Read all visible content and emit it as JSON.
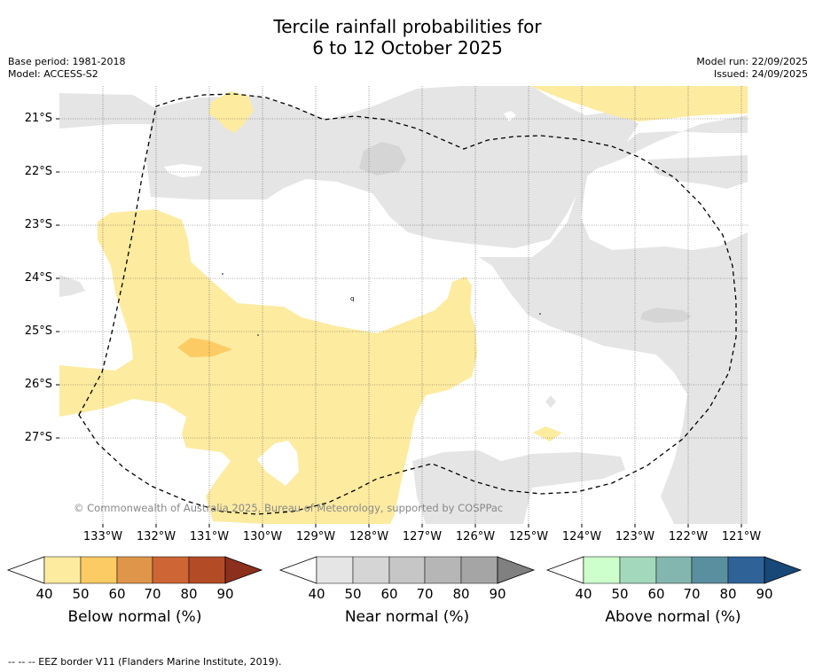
{
  "title_line1": "Tercile rainfall probabilities for",
  "title_line2": "6 to 12 October 2025",
  "base_period": "Base period: 1981-2018",
  "model": "Model: ACCESS-S2",
  "model_run": "Model run: 22/09/2025",
  "issued": "Issued: 24/09/2025",
  "latitude_labels": [
    "21°S",
    "22°S",
    "23°S",
    "24°S",
    "25°S",
    "26°S",
    "27°S"
  ],
  "longitude_labels": [
    "133°W",
    "132°W",
    "131°W",
    "130°W",
    "129°W",
    "128°W",
    "127°W",
    "126°W",
    "125°W",
    "124°W",
    "123°W",
    "122°W",
    "121°W"
  ],
  "copyright": "© Commonwealth of Australia 2025, Bureau of Meteorology, supported by COSPPac",
  "colorbars": [
    {
      "title": "Below normal (%)",
      "ticks": [
        "40",
        "50",
        "60",
        "70",
        "80",
        "90"
      ],
      "colors": [
        "#ffffff",
        "#fdeba0",
        "#fdcb63",
        "#e0964a",
        "#cd6634",
        "#b34b27",
        "#8c2f1c"
      ]
    },
    {
      "title": "Near normal (%)",
      "ticks": [
        "40",
        "50",
        "60",
        "70",
        "80",
        "90"
      ],
      "colors": [
        "#ffffff",
        "#e5e5e5",
        "#d5d5d5",
        "#c6c6c6",
        "#b6b6b6",
        "#a5a5a5",
        "#808080"
      ]
    },
    {
      "title": "Above normal (%)",
      "ticks": [
        "40",
        "50",
        "60",
        "70",
        "80",
        "90"
      ],
      "colors": [
        "#ffffff",
        "#ccffcc",
        "#a4d8bc",
        "#84b6b0",
        "#5a8fa0",
        "#2f6397",
        "#184878"
      ]
    }
  ],
  "footnote": "--  --  -- EEZ border V11 (Flanders Marine Institute, 2019)."
}
